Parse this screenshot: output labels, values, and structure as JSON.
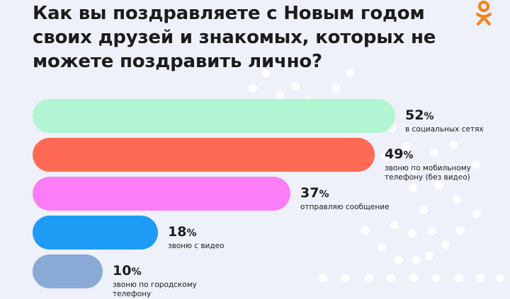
{
  "title": "Как вы поздравляете с Новым годом своих друзей и знакомых, которых не можете поздравить лично?",
  "logo": "ok-logo-icon",
  "colors": {
    "background": "#eef1f9",
    "dots": "#ffffff",
    "logo": "#f58220"
  },
  "chart_data": {
    "type": "bar",
    "orientation": "horizontal",
    "categories": [
      "в социальных сетях",
      "звоню по мобильному телефону (без видео)",
      "отправляю сообщение",
      "звоню с видео",
      "звоню по городскому телефону"
    ],
    "values": [
      52,
      49,
      37,
      18,
      10
    ],
    "value_labels": [
      "52",
      "49",
      "37",
      "18",
      "10"
    ],
    "unit": "%",
    "colors": [
      "#b2f5d3",
      "#ff6a55",
      "#fb7ef6",
      "#1f9cf5",
      "#8aa9d4"
    ],
    "xlim": [
      0,
      100
    ],
    "grid": false
  }
}
